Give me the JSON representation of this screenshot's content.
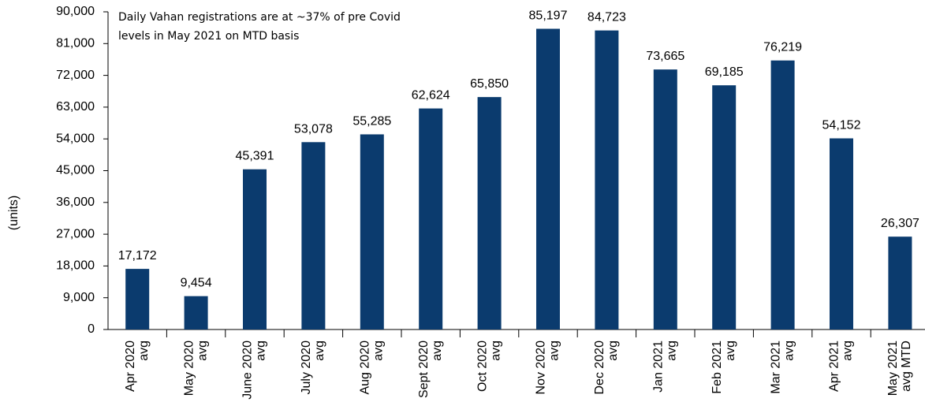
{
  "chart_data": {
    "type": "bar",
    "annotation": [
      "Daily Vahan registrations are at ~37% of pre Covid",
      "levels in May 2021 on MTD basis"
    ],
    "y_label": "(units)",
    "categories": [
      [
        "Apr 2020",
        "avg"
      ],
      [
        "May 2020",
        "avg"
      ],
      [
        "June 2020",
        "avg"
      ],
      [
        "July 2020",
        "avg"
      ],
      [
        "Aug 2020",
        "avg"
      ],
      [
        "Sept 2020",
        "avg"
      ],
      [
        "Oct 2020",
        "avg"
      ],
      [
        "Nov 2020",
        "avg"
      ],
      [
        "Dec 2020",
        "avg"
      ],
      [
        "Jan 2021",
        "avg"
      ],
      [
        "Feb 2021",
        "avg"
      ],
      [
        "Mar 2021",
        "avg"
      ],
      [
        "Apr 2021",
        "avg"
      ],
      [
        "May 2021",
        "avg MTD"
      ]
    ],
    "values": [
      17172,
      9454,
      45391,
      53078,
      55285,
      62624,
      65850,
      85197,
      84723,
      73665,
      69185,
      76219,
      54152,
      26307
    ],
    "value_labels": [
      "17,172",
      "9,454",
      "45,391",
      "53,078",
      "55,285",
      "62,624",
      "65,850",
      "85,197",
      "84,723",
      "73,665",
      "69,185",
      "76,219",
      "54,152",
      "26,307"
    ],
    "color": "#0b3b6e",
    "ylim": [
      0,
      90000
    ],
    "yticks": [
      0,
      {
        "value": 9000,
        "label": "9,000"
      },
      {
        "value": 18000,
        "label": "18,000"
      },
      {
        "value": 27000,
        "label": "27,000"
      },
      {
        "value": 36000,
        "label": "36,000"
      },
      {
        "value": 45000,
        "label": "45,000"
      },
      {
        "value": 54000,
        "label": "54,000"
      },
      {
        "value": 63000,
        "label": "63,000"
      },
      {
        "value": 72000,
        "label": "72,000"
      },
      {
        "value": 81000,
        "label": "81,000"
      },
      {
        "value": 90000,
        "label": "90,000"
      }
    ],
    "grid": false
  }
}
